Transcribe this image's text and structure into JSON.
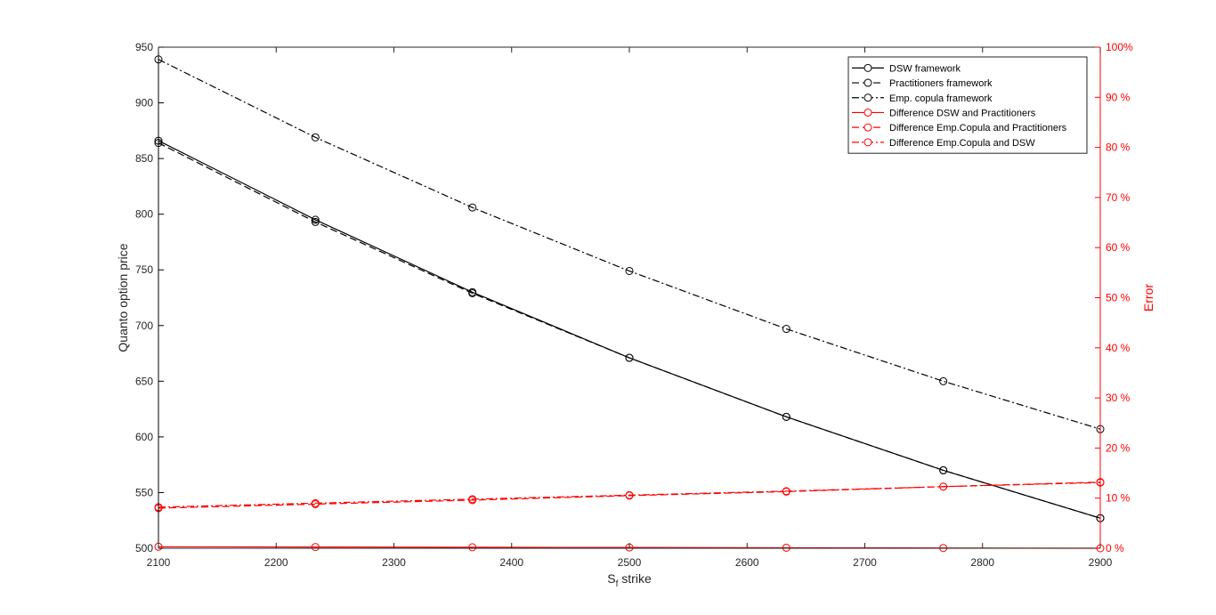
{
  "chart_data": {
    "type": "line",
    "xlabel": {
      "main": "S",
      "sub": "f",
      "rest": " strike"
    },
    "ylabel_left": "Quanto option price",
    "ylabel_right": "Error",
    "xlim": [
      2100,
      2900
    ],
    "ylim_left": [
      500,
      950
    ],
    "ylim_right": [
      0,
      100
    ],
    "x_ticks": [
      2100,
      2200,
      2300,
      2400,
      2500,
      2600,
      2700,
      2800,
      2900
    ],
    "y_ticks_left": [
      500,
      550,
      600,
      650,
      700,
      750,
      800,
      850,
      900,
      950
    ],
    "y_ticks_right": [
      0,
      10,
      20,
      30,
      40,
      50,
      60,
      70,
      80,
      90,
      100
    ],
    "y_tick_labels_right": [
      "0 %",
      "10 %",
      "20 %",
      "30 %",
      "40 %",
      "50 %",
      "60 %",
      "70 %",
      "80 %",
      "90 %",
      "100%"
    ],
    "grid": false,
    "legend_position": "top-right",
    "colors": {
      "left_axis": "#000000",
      "right_axis": "#ff0000"
    },
    "x": [
      2100,
      2233.33,
      2366.67,
      2500,
      2633.33,
      2766.67,
      2900
    ],
    "series": [
      {
        "name": "DSW framework",
        "axis": "left",
        "color": "#000000",
        "dash": "solid",
        "values": [
          866,
          795,
          730,
          671,
          618,
          570,
          527
        ]
      },
      {
        "name": "Practitioners framework",
        "axis": "left",
        "color": "#000000",
        "dash": "dashed",
        "values": [
          864,
          793,
          729,
          671,
          618,
          570,
          527
        ]
      },
      {
        "name": "Emp. copula framework",
        "axis": "left",
        "color": "#000000",
        "dash": "dashdot",
        "values": [
          939,
          869,
          806,
          749,
          697,
          650,
          607
        ]
      },
      {
        "name": "Difference DSW and Practitioners",
        "axis": "right",
        "color": "#ff0000",
        "dash": "solid",
        "values": [
          0.3,
          0.25,
          0.2,
          0.15,
          0.1,
          0.05,
          0.0
        ]
      },
      {
        "name": "Difference Emp.Copula and Practitioners",
        "axis": "right",
        "color": "#ff0000",
        "dash": "dashed",
        "values": [
          8.0,
          8.8,
          9.6,
          10.5,
          11.3,
          12.3,
          13.2
        ]
      },
      {
        "name": "Difference Emp.Copula and DSW",
        "axis": "right",
        "color": "#ff0000",
        "dash": "dashdot",
        "values": [
          8.2,
          9.0,
          9.8,
          10.6,
          11.4,
          12.3,
          13.1
        ]
      }
    ]
  }
}
